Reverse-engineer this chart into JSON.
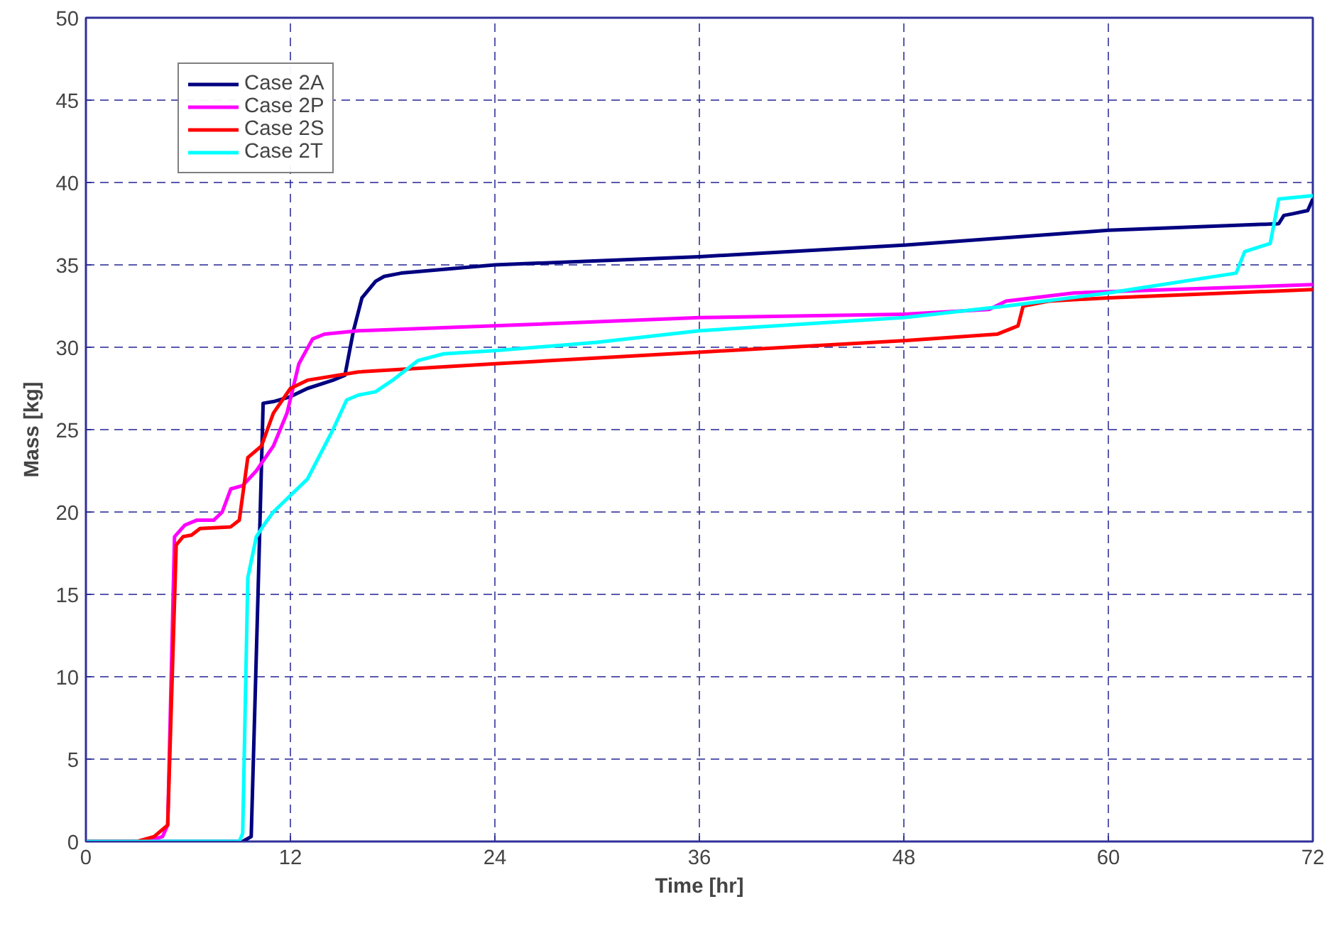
{
  "chart_data": {
    "type": "line",
    "xlabel": "Time [hr]",
    "ylabel": "Mass [kg]",
    "xlim": [
      0,
      72
    ],
    "ylim": [
      0,
      50
    ],
    "xticks": [
      0,
      12,
      24,
      36,
      48,
      60,
      72
    ],
    "yticks": [
      0,
      5,
      10,
      15,
      20,
      25,
      30,
      35,
      40,
      45,
      50
    ],
    "grid": true,
    "legend": "top left",
    "line_style": "solid",
    "marker": "none",
    "series": [
      {
        "name": "Case 2A",
        "color": "#000080",
        "x": [
          0,
          9.2,
          9.7,
          10.1,
          10.4,
          11,
          12,
          13,
          14.5,
          15.2,
          15.7,
          16.2,
          17,
          17.5,
          18.5,
          24,
          36,
          48,
          60,
          70,
          70.3,
          70.8,
          71.7,
          72
        ],
        "values": [
          0,
          0,
          0.3,
          15,
          26.6,
          26.7,
          27,
          27.5,
          28,
          28.3,
          31,
          33,
          34,
          34.3,
          34.5,
          35,
          35.5,
          36.2,
          37.1,
          37.5,
          38,
          38.1,
          38.3,
          39
        ]
      },
      {
        "name": "Case 2P",
        "color": "#ff00ff",
        "x": [
          0,
          3.5,
          4.5,
          4.8,
          5.2,
          5.8,
          6.5,
          7.5,
          8,
          8.5,
          9.2,
          10,
          11,
          11.8,
          12.5,
          13.3,
          14,
          16,
          24,
          36,
          48,
          53,
          54,
          58,
          72
        ],
        "values": [
          0,
          0,
          0.3,
          1,
          18.5,
          19.2,
          19.5,
          19.5,
          20,
          21.4,
          21.6,
          22.5,
          24,
          26,
          29,
          30.5,
          30.8,
          31,
          31.3,
          31.8,
          32,
          32.3,
          32.8,
          33.3,
          33.8
        ]
      },
      {
        "name": "Case 2S",
        "color": "#ff0000",
        "x": [
          0,
          3,
          4,
          4.8,
          5.3,
          5.7,
          6.2,
          6.7,
          8.5,
          9,
          9.5,
          10.3,
          11,
          12,
          13,
          16,
          24,
          36,
          48,
          53.5,
          54.7,
          55,
          56.5,
          60,
          72
        ],
        "values": [
          0,
          0,
          0.3,
          1,
          18,
          18.5,
          18.6,
          19,
          19.1,
          19.5,
          23.3,
          24,
          26,
          27.5,
          28,
          28.5,
          29,
          29.7,
          30.4,
          30.8,
          31.3,
          32.5,
          32.8,
          33,
          33.5
        ]
      },
      {
        "name": "Case 2T",
        "color": "#00ffff",
        "x": [
          0,
          9,
          9.2,
          9.5,
          10,
          10.5,
          11,
          12,
          13,
          14.5,
          15.3,
          16,
          17,
          18,
          19.5,
          21,
          24,
          30,
          36,
          48,
          54,
          60,
          67.5,
          68,
          69.5,
          70,
          72
        ],
        "values": [
          0,
          0,
          0.5,
          16,
          18.5,
          19.3,
          20,
          21,
          22,
          25,
          26.8,
          27.1,
          27.3,
          28,
          29.2,
          29.6,
          29.8,
          30.3,
          31,
          31.8,
          32.5,
          33.3,
          34.5,
          35.8,
          36.3,
          39,
          39.2
        ]
      }
    ]
  }
}
